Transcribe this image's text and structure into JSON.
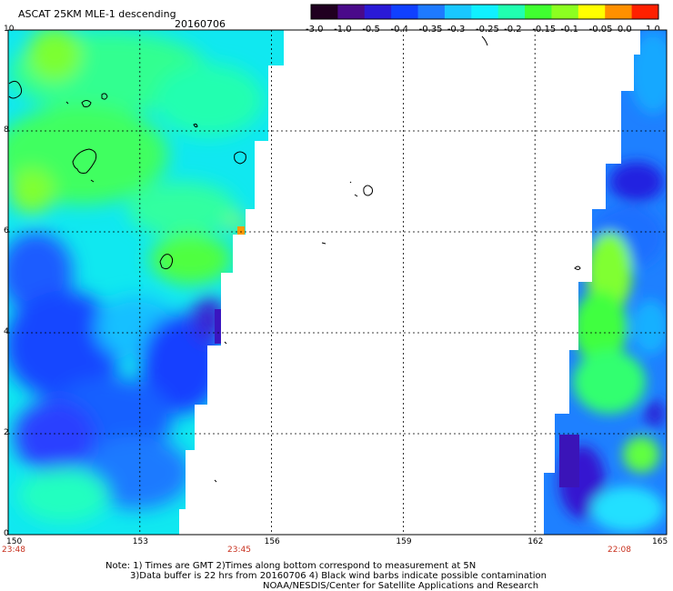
{
  "title": "ASCAT 25KM MLE-1 descending",
  "date": "20160706",
  "axes": {
    "lon_ticks": [
      "150",
      "153",
      "156",
      "159",
      "162",
      "165"
    ],
    "lat_ticks": [
      "0",
      "2",
      "4",
      "6",
      "8",
      "10"
    ],
    "pass_times": [
      "23:48",
      "23:45",
      "22:08"
    ]
  },
  "colorbar": {
    "labels": [
      "-3.0",
      "-1.0",
      "-0.5",
      "-0.4",
      "-0.35",
      "-0.3",
      "-0.25",
      "-0.2",
      "-0.15",
      "-0.1",
      "-0.05",
      "0.0",
      "1.0"
    ],
    "colors": [
      "#200020",
      "#4a0a8a",
      "#2a1ad6",
      "#1040ff",
      "#1e7aff",
      "#19c8ff",
      "#10f0ff",
      "#20ffb0",
      "#40ff30",
      "#8cff20",
      "#ffff00",
      "#ff9000",
      "#ff2000"
    ]
  },
  "notes": {
    "line1": "Note: 1) Times are GMT 2)Times along bottom correspond to measurement at 5N",
    "line2": "3)Data buffer is 22 hrs from 20160706 4) Black wind barbs indicate possible contamination",
    "line3": "NOAA/NESDIS/Center for Satellite Applications and Research"
  },
  "colors": {
    "tick_time": "#c8301e",
    "grid": "#000000"
  }
}
